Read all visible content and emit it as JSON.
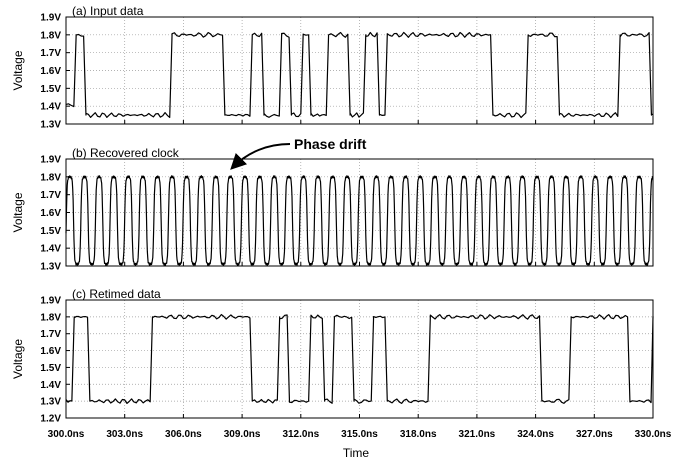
{
  "chart_data": {
    "type": "line",
    "xlabel": "Time",
    "x_ticks": [
      "300.0ns",
      "303.0ns",
      "306.0ns",
      "309.0ns",
      "312.0ns",
      "315.0ns",
      "318.0ns",
      "321.0ns",
      "324.0ns",
      "327.0ns",
      "330.0ns"
    ],
    "xlim": [
      300.0,
      330.0
    ],
    "panels": [
      {
        "title": "(a) Input data",
        "ylabel": "Voltage",
        "y_ticks": [
          "1.9V",
          "1.8V",
          "1.7V",
          "1.6V",
          "1.5V",
          "1.4V",
          "1.3V"
        ],
        "ylim": [
          1.3,
          1.9
        ],
        "high": 1.8,
        "low": 1.35,
        "transitions": [
          300.4,
          300.9,
          305.3,
          308.0,
          309.4,
          310.0,
          310.9,
          311.4,
          312.0,
          312.4,
          313.3,
          314.4,
          315.2,
          315.9,
          316.3,
          321.7,
          323.5,
          325.1,
          328.2,
          329.8
        ],
        "initial_level": 1.4
      },
      {
        "title": "(b) Recovered clock",
        "ylabel": "Voltage",
        "y_ticks": [
          "1.9V",
          "1.8V",
          "1.7V",
          "1.6V",
          "1.5V",
          "1.4V",
          "1.3V"
        ],
        "ylim": [
          1.3,
          1.9
        ],
        "high": 1.8,
        "low": 1.31,
        "period_ns": 0.746,
        "first_peak": 300.2,
        "annotation": "Phase drift"
      },
      {
        "title": "(c) Retimed data",
        "ylabel": "Voltage",
        "y_ticks": [
          "1.9V",
          "1.8V",
          "1.7V",
          "1.6V",
          "1.5V",
          "1.4V",
          "1.3V",
          "1.2V"
        ],
        "ylim": [
          1.2,
          1.9
        ],
        "high": 1.8,
        "low": 1.3,
        "transitions": [
          300.3,
          301.1,
          304.3,
          309.4,
          310.8,
          311.3,
          312.4,
          313.1,
          313.6,
          314.6,
          315.6,
          316.3,
          318.5,
          324.2,
          325.7,
          328.7,
          329.9
        ],
        "initial_level": 1.3
      }
    ]
  }
}
